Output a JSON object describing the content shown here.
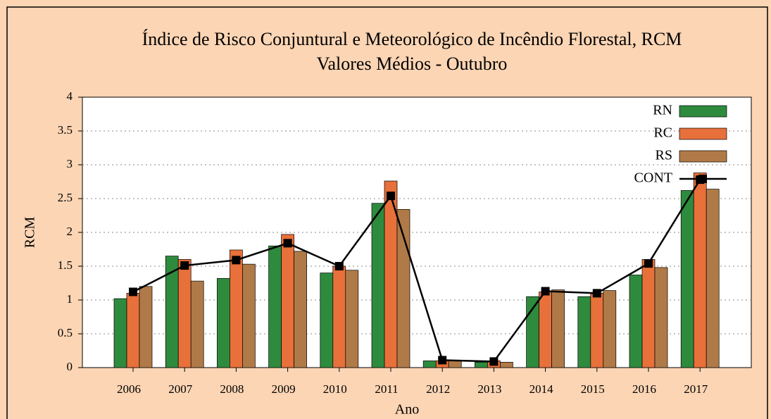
{
  "chart_data": {
    "type": "bar",
    "title": "Índice de Risco Conjuntural e Meteorológico de Incêndio Florestal,  RCM",
    "subtitle": "Valores Médios - Outubro",
    "x_label": "Ano",
    "y_label": "RCM",
    "categories": [
      "2006",
      "2007",
      "2008",
      "2009",
      "2010",
      "2011",
      "2012",
      "2013",
      "2014",
      "2015",
      "2016",
      "2017"
    ],
    "series": [
      {
        "name": "RN",
        "color": "#2e8b3e",
        "values": [
          1.02,
          1.65,
          1.32,
          1.8,
          1.4,
          2.43,
          0.1,
          0.08,
          1.05,
          1.05,
          1.37,
          2.62
        ]
      },
      {
        "name": "RC",
        "color": "#e8703a",
        "values": [
          1.1,
          1.6,
          1.74,
          1.97,
          1.5,
          2.76,
          0.1,
          0.1,
          1.12,
          1.1,
          1.6,
          2.88
        ]
      },
      {
        "name": "RS",
        "color": "#b07a48",
        "values": [
          1.2,
          1.28,
          1.53,
          1.72,
          1.44,
          2.34,
          0.1,
          0.08,
          1.15,
          1.14,
          1.48,
          2.64
        ]
      },
      {
        "name": "CONT",
        "type": "line",
        "color": "#000000",
        "values": [
          1.12,
          1.51,
          1.59,
          1.84,
          1.5,
          2.54,
          0.11,
          0.09,
          1.13,
          1.1,
          1.54,
          2.78
        ]
      }
    ],
    "ylim": [
      0,
      4
    ],
    "yticks": [
      0,
      0.5,
      1,
      1.5,
      2,
      2.5,
      3,
      3.5,
      4
    ],
    "grid": true,
    "legend": "top-right"
  }
}
